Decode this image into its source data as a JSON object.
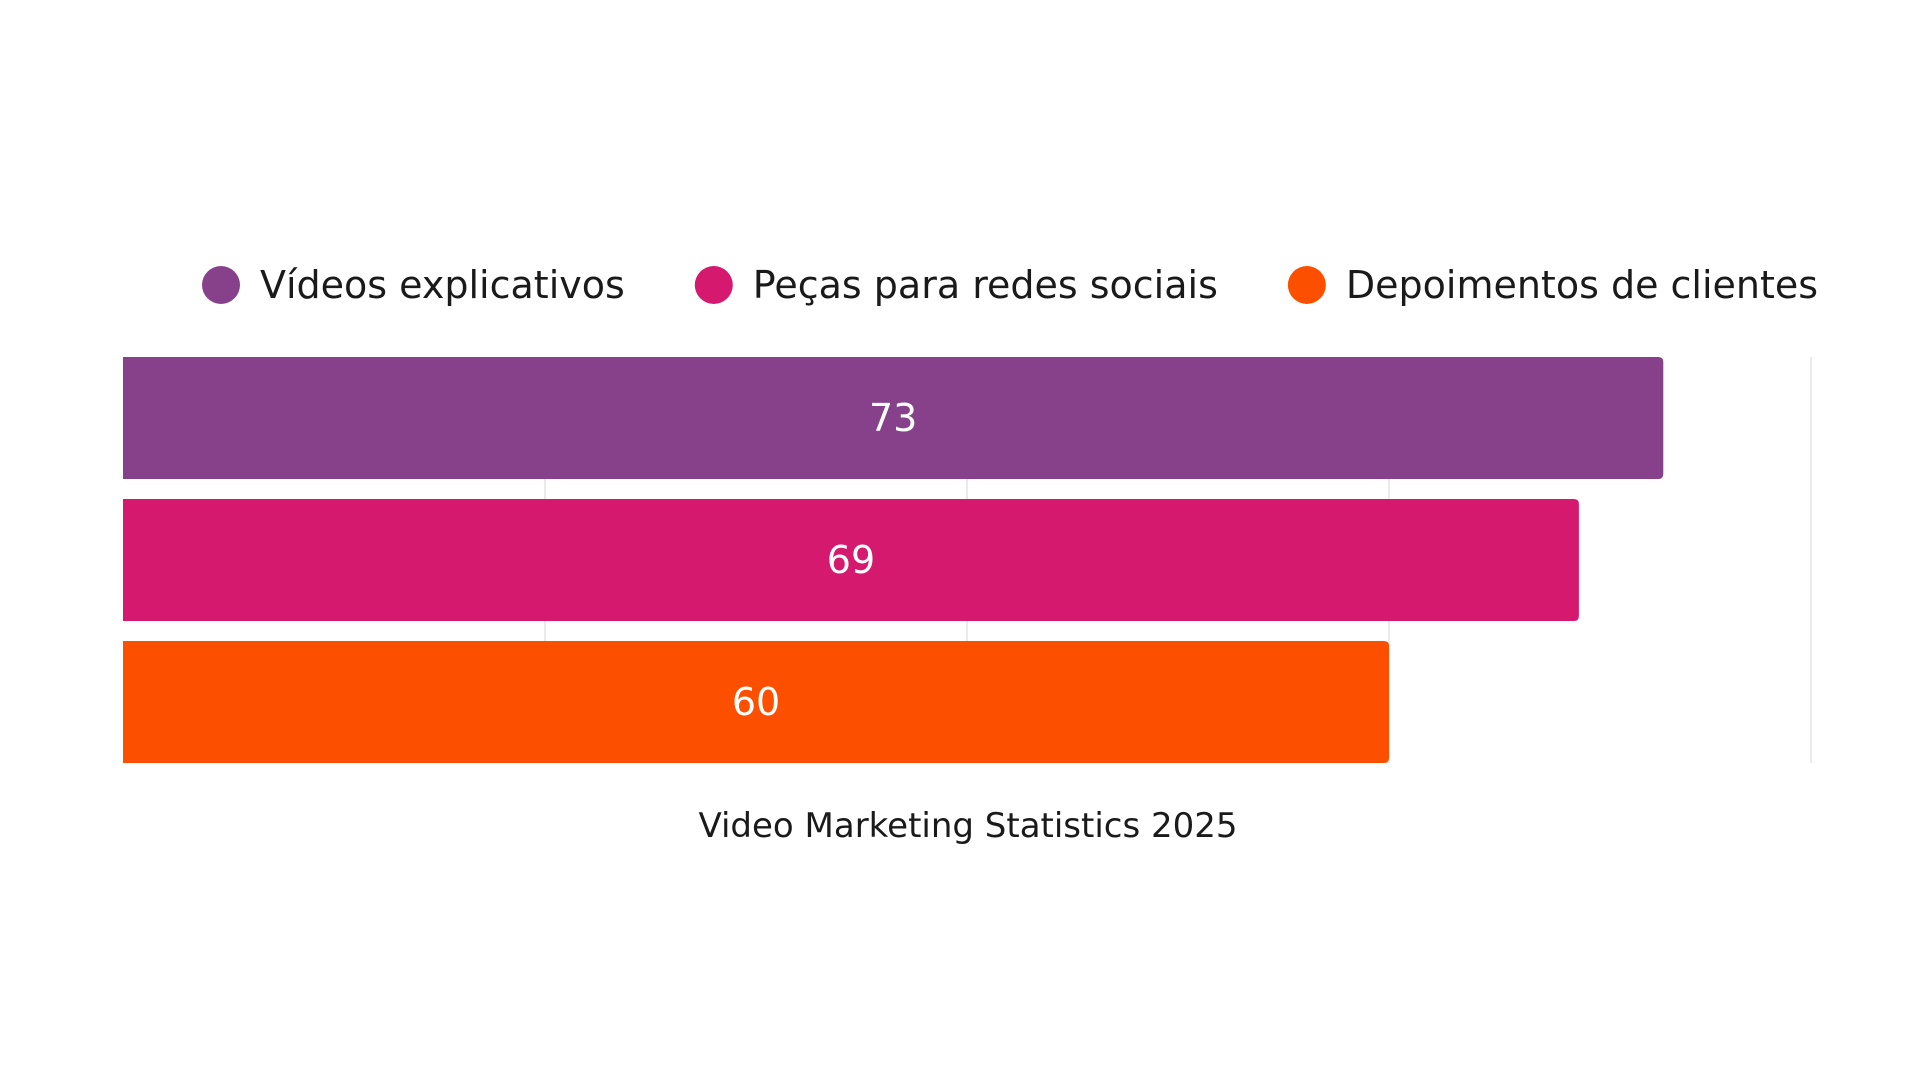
{
  "chart_data": {
    "type": "bar",
    "orientation": "horizontal",
    "title": "",
    "xlabel": "Video Marketing Statistics 2025",
    "ylabel": "",
    "xlim": [
      0,
      80
    ],
    "grid": true,
    "legend_position": "top",
    "categories": [
      "Vídeos explicativos",
      "Peças para redes sociais",
      "Depoimentos de clientes"
    ],
    "values": [
      73,
      69,
      60
    ],
    "colors": [
      "#87408A",
      "#D4196F",
      "#FC5000"
    ],
    "show_data_labels": true
  }
}
